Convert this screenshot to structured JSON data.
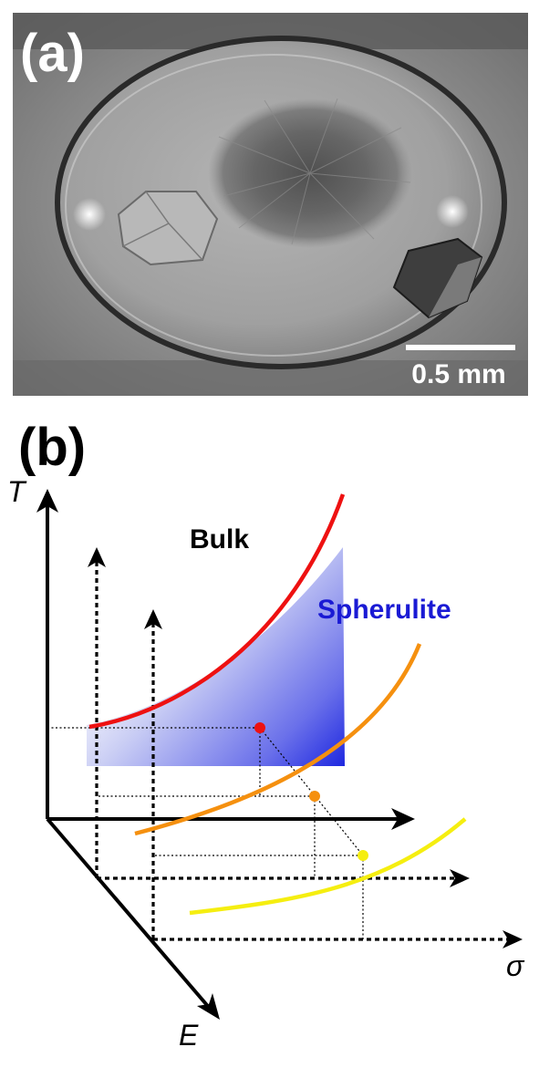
{
  "panel_a": {
    "label": "(a)",
    "scale_bar": {
      "text": "0.5 mm"
    }
  },
  "panel_b": {
    "label": "(b)",
    "regions": {
      "bulk": "Bulk",
      "spherulite": "Spherulite"
    },
    "axes": {
      "vertical": "T",
      "horizontal": "σ",
      "depth": "E"
    },
    "colors": {
      "top_curve": "#ee1111",
      "middle_curve": "#f5900f",
      "bottom_curve": "#f5ee10",
      "spherulite_region": "#1e28e0",
      "spherulite_text": "#1a1ad4"
    }
  }
}
